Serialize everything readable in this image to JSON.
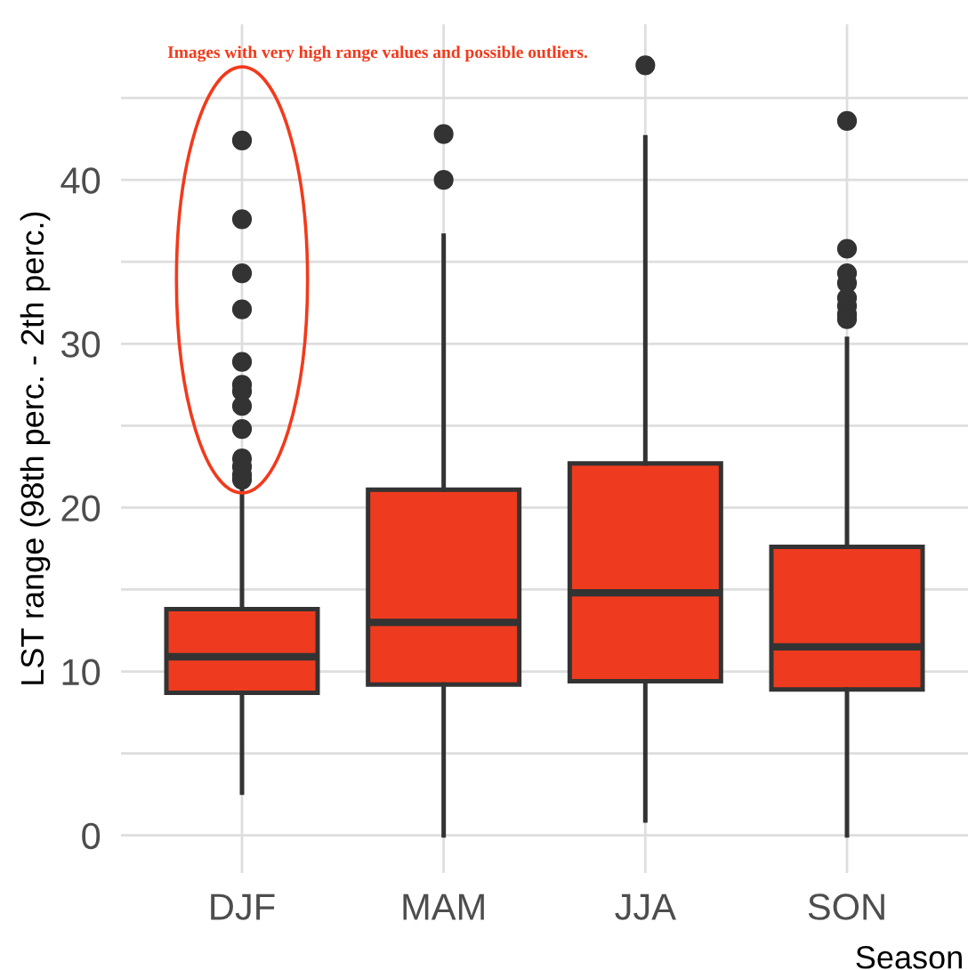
{
  "chart_data": {
    "type": "box",
    "xlabel": "Season",
    "ylabel": "LST range (98th perc. - 2th perc.)",
    "annotations": [
      "Images with very high range values and possible outliers."
    ],
    "categories": [
      "DJF",
      "MAM",
      "JJA",
      "SON"
    ],
    "series": [
      {
        "color": "#ee3b1f",
        "boxes": [
          {
            "low": 2.6,
            "q1": 8.7,
            "median": 10.9,
            "q3": 13.8,
            "high": 21.5,
            "outliers": [
              42.4,
              37.6,
              34.3,
              32.1,
              28.9,
              27.5,
              27.1,
              26.2,
              24.8,
              23,
              22.5,
              22,
              21.7
            ]
          },
          {
            "low": 0,
            "q1": 9.2,
            "median": 13.0,
            "q3": 21.1,
            "high": 36.6,
            "outliers": [
              42.8,
              40.0
            ]
          },
          {
            "low": 0.9,
            "q1": 9.4,
            "median": 14.8,
            "q3": 22.7,
            "high": 42.6,
            "outliers": [
              47.0
            ]
          },
          {
            "low": 0,
            "q1": 8.9,
            "median": 11.5,
            "q3": 17.6,
            "high": 30.3,
            "outliers": [
              43.6,
              35.8,
              34.3,
              33.7,
              32.8,
              32.3,
              31.8,
              31.5
            ]
          }
        ]
      }
    ],
    "ylim": [
      -2.3,
      49.5
    ],
    "yticks": [
      0,
      {
        "value": 5,
        "label": null
      },
      10,
      {
        "value": 15,
        "label": null
      },
      20,
      {
        "value": 25,
        "label": null
      },
      30,
      {
        "value": 35,
        "label": null
      },
      40,
      {
        "value": 45,
        "label": null
      }
    ],
    "grid": true
  }
}
